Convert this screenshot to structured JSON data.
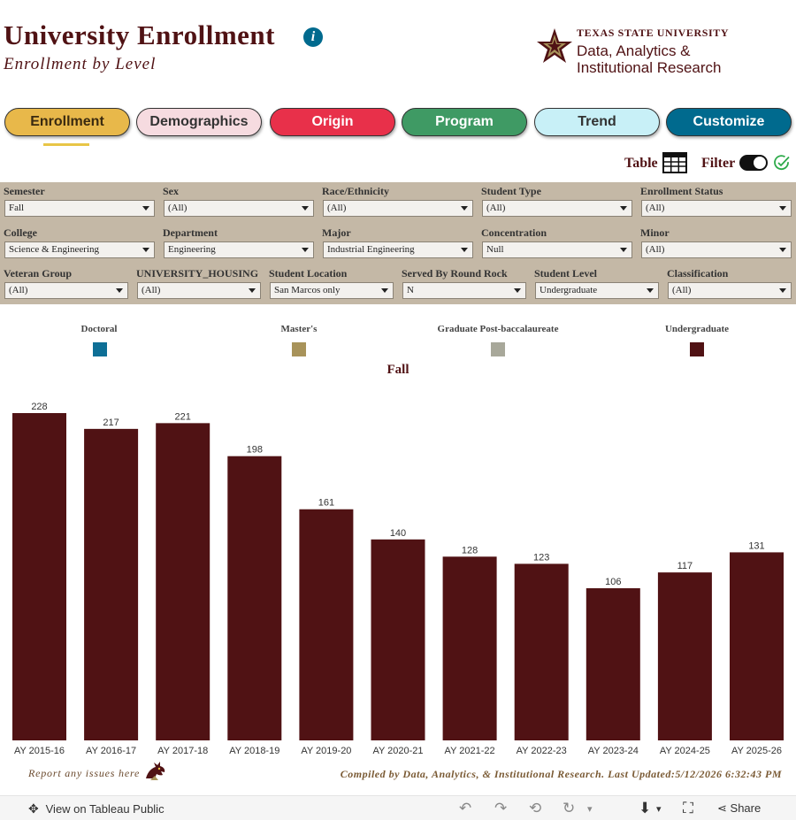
{
  "header": {
    "title": "University Enrollment",
    "subtitle": "Enrollment by Level",
    "info_icon": "i"
  },
  "logo": {
    "university": "TEXAS STATE UNIVERSITY",
    "line1": "Data, Analytics &",
    "line2": "Institutional Research"
  },
  "nav": [
    {
      "label": "Enrollment",
      "bg": "#e8b84a",
      "fg": "#3a2a10"
    },
    {
      "label": "Demographics",
      "bg": "#f6dbe0",
      "fg": "#333333"
    },
    {
      "label": "Origin",
      "bg": "#e8304a",
      "fg": "#ffffff"
    },
    {
      "label": "Program",
      "bg": "#3f9a64",
      "fg": "#ffffff"
    },
    {
      "label": "Trend",
      "bg": "#c8f0f7",
      "fg": "#333333"
    },
    {
      "label": "Customize",
      "bg": "#006a8e",
      "fg": "#ffffff"
    }
  ],
  "toolbar": {
    "table_label": "Table",
    "filter_label": "Filter"
  },
  "filters": {
    "row1": [
      {
        "label": "Semester",
        "value": "Fall"
      },
      {
        "label": "Sex",
        "value": "(All)"
      },
      {
        "label": "Race/Ethnicity",
        "value": "(All)"
      },
      {
        "label": "Student Type",
        "value": "(All)"
      },
      {
        "label": "Enrollment Status",
        "value": "(All)"
      }
    ],
    "row2": [
      {
        "label": "College",
        "value": "Science & Engineering"
      },
      {
        "label": "Department",
        "value": "Engineering"
      },
      {
        "label": "Major",
        "value": "Industrial Engineering"
      },
      {
        "label": "Concentration",
        "value": "Null"
      },
      {
        "label": "Minor",
        "value": "(All)"
      }
    ],
    "row3": [
      {
        "label": "Veteran Group",
        "value": "(All)"
      },
      {
        "label": "UNIVERSITY_HOUSING",
        "value": "(All)"
      },
      {
        "label": "Student Location",
        "value": "San Marcos only"
      },
      {
        "label": "Served By Round Rock",
        "value": "N"
      },
      {
        "label": "Student Level",
        "value": "Undergraduate"
      },
      {
        "label": "Classification",
        "value": "(All)"
      }
    ]
  },
  "legend": [
    {
      "label": "Doctoral",
      "color": "#0e6f96"
    },
    {
      "label": "Master's",
      "color": "#a8935a"
    },
    {
      "label": "Graduate Post-baccalaureate",
      "color": "#a8a89a"
    },
    {
      "label": "Undergraduate",
      "color": "#501214"
    }
  ],
  "chart_data": {
    "type": "bar",
    "title": "Fall",
    "categories": [
      "AY 2015-16",
      "AY 2016-17",
      "AY 2017-18",
      "AY 2018-19",
      "AY 2019-20",
      "AY 2020-21",
      "AY 2021-22",
      "AY 2022-23",
      "AY 2023-24",
      "AY 2024-25",
      "AY 2025-26"
    ],
    "series": [
      {
        "name": "Undergraduate",
        "color": "#501214",
        "values": [
          228,
          217,
          221,
          198,
          161,
          140,
          128,
          123,
          106,
          117,
          131
        ]
      }
    ],
    "ylim": [
      0,
      228
    ],
    "grid": false,
    "legend_position": "top"
  },
  "footer": {
    "report": "Report any issues here",
    "compiled": "Compiled by Data, Analytics, & Institutional Research. Last Updated:5/12/2026 6:32:43 PM",
    "view_on_public": "View on Tableau Public",
    "share": "Share"
  }
}
